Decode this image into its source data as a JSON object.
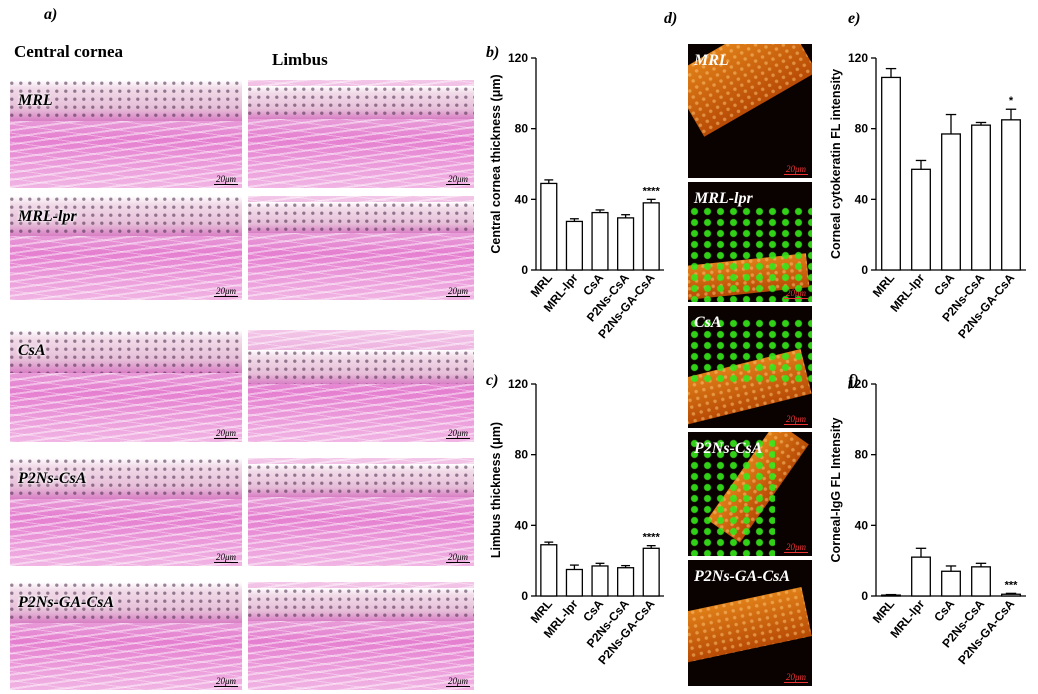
{
  "panel_labels": {
    "a": "a)",
    "b": "b)",
    "c": "c)",
    "d": "d)",
    "e": "e)",
    "f": "f)"
  },
  "column_titles": {
    "central": "Central cornea",
    "limbus": "Limbus"
  },
  "he_rows": [
    "MRL",
    "MRL-lpr",
    "CsA",
    "P2Ns-CsA",
    "P2Ns-GA-CsA"
  ],
  "fl_rows": [
    "MRL",
    "MRL-lpr",
    "CsA",
    "P2Ns-CsA",
    "P2Ns-GA-CsA"
  ],
  "scale_label": "20μm",
  "colors": {
    "he_pink": "#e57fd0",
    "fl_orange": "#e07f18",
    "fl_green": "#35e81a",
    "scale_red": "#e33333"
  },
  "chart_data": [
    {
      "id": "b",
      "type": "bar",
      "categories": [
        "MRL",
        "MRL-lpr",
        "CsA",
        "P2Ns-CsA",
        "P2Ns-GA-CsA"
      ],
      "values": [
        49,
        27.5,
        32.5,
        29.5,
        38
      ],
      "errors": [
        2,
        1.5,
        1.5,
        1.8,
        2
      ],
      "ylabel": "Central cornea thickness (μm)",
      "ylim": [
        0,
        120
      ],
      "yticks": [
        0,
        40,
        80,
        120
      ],
      "annotations": [
        {
          "category": "P2Ns-GA-CsA",
          "text": "****"
        }
      ]
    },
    {
      "id": "c",
      "type": "bar",
      "categories": [
        "MRL",
        "MRL-lpr",
        "CsA",
        "P2Ns-CsA",
        "P2Ns-GA-CsA"
      ],
      "values": [
        29,
        15,
        17,
        16,
        27
      ],
      "errors": [
        1.5,
        2.5,
        1.5,
        1.2,
        1.5
      ],
      "ylabel": "Limbus thickness (μm)",
      "ylim": [
        0,
        120
      ],
      "yticks": [
        0,
        40,
        80,
        120
      ],
      "annotations": [
        {
          "category": "P2Ns-GA-CsA",
          "text": "****"
        }
      ]
    },
    {
      "id": "e",
      "type": "bar",
      "categories": [
        "MRL",
        "MRL-lpr",
        "CsA",
        "P2Ns-CsA",
        "P2Ns-GA-CsA"
      ],
      "values": [
        109,
        57,
        77,
        82,
        85
      ],
      "errors": [
        5,
        5,
        11,
        1.5,
        6
      ],
      "ylabel": "Corneal cytokeratin  FL  intensity",
      "ylim": [
        0,
        120
      ],
      "yticks": [
        0,
        40,
        80,
        120
      ],
      "annotations": [
        {
          "category": "P2Ns-GA-CsA",
          "text": "*"
        }
      ]
    },
    {
      "id": "f",
      "type": "bar",
      "categories": [
        "MRL",
        "MRL-lpr",
        "CsA",
        "P2Ns-CsA",
        "P2Ns-GA-CsA"
      ],
      "values": [
        0.5,
        22,
        14,
        16.5,
        1
      ],
      "errors": [
        0.3,
        5,
        3,
        2,
        0.5
      ],
      "ylabel": "Corneal-IgG FL Intensity",
      "ylim": [
        0,
        120
      ],
      "yticks": [
        0,
        40,
        80,
        120
      ],
      "annotations": [
        {
          "category": "P2Ns-GA-CsA",
          "text": "***"
        }
      ]
    }
  ]
}
